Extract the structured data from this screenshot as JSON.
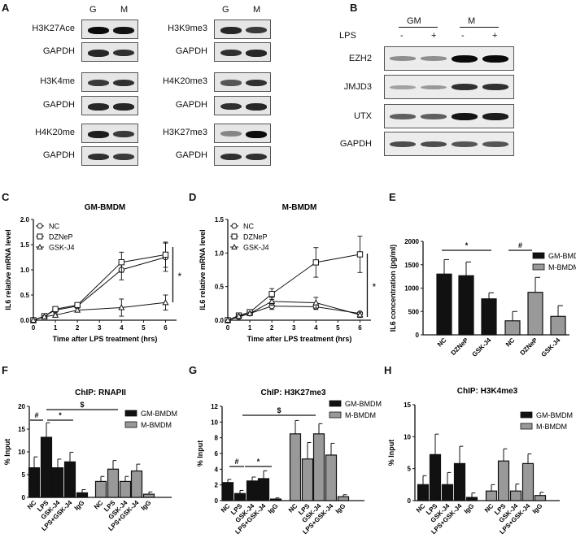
{
  "panel_labels": [
    "A",
    "B",
    "C",
    "D",
    "E",
    "F",
    "G",
    "H"
  ],
  "panelA": {
    "columns": [
      "G",
      "M"
    ],
    "blots": [
      {
        "label": "H3K27Ace",
        "g": 1.0,
        "m": 0.95
      },
      {
        "label": "GAPDH",
        "g": 0.85,
        "m": 0.8
      },
      {
        "label": "H3K4me",
        "g": 0.75,
        "m": 0.8
      },
      {
        "label": "GAPDH",
        "g": 0.85,
        "m": 0.85
      },
      {
        "label": "H4K20me",
        "g": 0.9,
        "m": 0.75
      },
      {
        "label": "GAPDH",
        "g": 0.8,
        "m": 0.75
      },
      {
        "label": "H3K9me3",
        "g": 0.85,
        "m": 0.75
      },
      {
        "label": "GAPDH",
        "g": 0.8,
        "m": 0.85
      },
      {
        "label": "H4K20me3",
        "g": 0.6,
        "m": 0.8
      },
      {
        "label": "GAPDH",
        "g": 0.8,
        "m": 0.85
      },
      {
        "label": "H3K27me3",
        "g": 0.35,
        "m": 1.0
      },
      {
        "label": "GAPDH",
        "g": 0.8,
        "m": 0.8
      }
    ]
  },
  "panelB": {
    "groups": [
      "GM",
      "M"
    ],
    "lps_label": "LPS",
    "lps_signs": [
      "-",
      "+",
      "-",
      "+"
    ],
    "blots": [
      {
        "label": "EZH2",
        "intensities": [
          0.3,
          0.3,
          1.0,
          1.0
        ]
      },
      {
        "label": "JMJD3",
        "intensities": [
          0.2,
          0.25,
          0.8,
          0.8
        ]
      },
      {
        "label": "UTX",
        "intensities": [
          0.55,
          0.55,
          0.95,
          0.9
        ]
      },
      {
        "label": "GAPDH",
        "intensities": [
          0.65,
          0.65,
          0.6,
          0.6
        ]
      }
    ]
  },
  "chart_data": [
    {
      "panel": "C",
      "type": "line",
      "title": "GM-BMDM",
      "xlabel": "Time after LPS treatment (hrs)",
      "ylabel": "IL6 relative mRNA level",
      "xlim": [
        0,
        6.5
      ],
      "ylim": [
        0,
        2.0
      ],
      "xticks": [
        0,
        1,
        2,
        3,
        4,
        5,
        6
      ],
      "yticks": [
        "0.0",
        "0.5",
        "1.0",
        "1.5",
        "2.0"
      ],
      "x": [
        0,
        0.5,
        1,
        2,
        4,
        6
      ],
      "series": [
        {
          "name": "NC",
          "marker": "circle",
          "values": [
            0,
            0.08,
            0.2,
            0.28,
            1.0,
            1.25
          ],
          "errors": [
            0,
            0.02,
            0.04,
            0.04,
            0.2,
            0.28
          ]
        },
        {
          "name": "DZNeP",
          "marker": "square",
          "values": [
            0,
            0.08,
            0.22,
            0.3,
            1.15,
            1.3
          ],
          "errors": [
            0,
            0.02,
            0.04,
            0.04,
            0.2,
            0.25
          ]
        },
        {
          "name": "GSK-J4",
          "marker": "triangle",
          "values": [
            0,
            0.07,
            0.1,
            0.2,
            0.25,
            0.35
          ],
          "errors": [
            0,
            0.02,
            0.03,
            0.04,
            0.17,
            0.15
          ]
        }
      ],
      "annotation": "*"
    },
    {
      "panel": "D",
      "type": "line",
      "title": "M-BMDM",
      "xlabel": "Time after LPS treatment (hrs)",
      "ylabel": "IL6 relative mRNA level",
      "xlim": [
        0,
        6.5
      ],
      "ylim": [
        0,
        1.5
      ],
      "xticks": [
        0,
        1,
        2,
        3,
        4,
        5,
        6
      ],
      "yticks": [
        "0.0",
        "0.5",
        "1.0",
        "1.5"
      ],
      "x": [
        0,
        0.5,
        1,
        2,
        4,
        6
      ],
      "series": [
        {
          "name": "NC",
          "marker": "circle",
          "values": [
            0,
            0.05,
            0.1,
            0.21,
            0.2,
            0.1
          ],
          "errors": [
            0,
            0.02,
            0.02,
            0.05,
            0.04,
            0.02
          ]
        },
        {
          "name": "DZNeP",
          "marker": "square",
          "values": [
            0,
            0.07,
            0.12,
            0.39,
            0.86,
            0.98
          ],
          "errors": [
            0,
            0.02,
            0.02,
            0.08,
            0.22,
            0.27
          ]
        },
        {
          "name": "GSK-J4",
          "marker": "triangle",
          "values": [
            0,
            0.06,
            0.1,
            0.28,
            0.26,
            0.08
          ],
          "errors": [
            0,
            0.02,
            0.02,
            0.06,
            0.08,
            0.04
          ]
        }
      ],
      "annotation": "*"
    },
    {
      "panel": "E",
      "type": "bar",
      "title": "",
      "ylabel": "IL6 concentration (pg/ml)",
      "ylim": [
        0,
        2000
      ],
      "yticks": [
        "0",
        "500",
        "1000",
        "1500",
        "2000"
      ],
      "categories": [
        "NC",
        "DZNeP",
        "GSK-J4",
        "NC",
        "DZNeP",
        "GSK-J4"
      ],
      "series": [
        {
          "name": "GM-BMDM",
          "color": "#111111",
          "values": [
            1300,
            1265,
            770
          ],
          "errors": [
            310,
            295,
            130
          ]
        },
        {
          "name": "M-BMDM",
          "color": "#999999",
          "values": [
            300,
            910,
            395
          ],
          "errors": [
            200,
            320,
            230
          ]
        }
      ],
      "annotations": [
        "*",
        "#"
      ],
      "legend": [
        "GM-BMDM",
        "M-BMDM"
      ]
    },
    {
      "panel": "F",
      "type": "bar",
      "title": "ChIP: RNAPII",
      "ylabel": "% Input",
      "ylim": [
        0,
        20
      ],
      "yticks": [
        "0",
        "5",
        "10",
        "15",
        "20"
      ],
      "categories": [
        "NC",
        "LPS",
        "GSK-J4",
        "LPS+GSK-J4",
        "IgG"
      ],
      "series": [
        {
          "name": "GM-BMDM",
          "color": "#111111",
          "values": [
            6.5,
            13.2,
            6.5,
            7.8,
            1.0
          ],
          "errors": [
            2.4,
            3.2,
            1.9,
            2.1,
            0.7
          ]
        },
        {
          "name": "M-BMDM",
          "color": "#999999",
          "values": [
            3.5,
            6.2,
            3.5,
            5.8,
            0.7
          ],
          "errors": [
            1.1,
            1.9,
            1.1,
            1.5,
            0.5
          ]
        }
      ],
      "annotations": [
        "#",
        "*",
        "$"
      ],
      "legend": [
        "GM-BMDM",
        "M-BMDM"
      ]
    },
    {
      "panel": "G",
      "type": "bar",
      "title": "ChIP: H3K27me3",
      "ylabel": "% Input",
      "ylim": [
        0,
        12
      ],
      "yticks": [
        "0",
        "2",
        "4",
        "6",
        "8",
        "10",
        "12"
      ],
      "categories": [
        "NC",
        "LPS",
        "GSK-J4",
        "LPS+GSK-J4",
        "IgG"
      ],
      "series": [
        {
          "name": "GM-BMDM",
          "color": "#111111",
          "values": [
            2.3,
            0.9,
            2.5,
            2.8,
            0.2
          ],
          "errors": [
            0.4,
            0.4,
            0.5,
            1.0,
            0.15
          ]
        },
        {
          "name": "M-BMDM",
          "color": "#999999",
          "values": [
            8.5,
            5.3,
            8.5,
            5.8,
            0.5
          ],
          "errors": [
            1.7,
            2.1,
            1.3,
            1.5,
            0.25
          ]
        }
      ],
      "annotations": [
        "#",
        "*",
        "$"
      ],
      "legend": [
        "GM-BMDM",
        "M-BMDM"
      ]
    },
    {
      "panel": "H",
      "type": "bar",
      "title": "ChIP: H3K4me3",
      "ylabel": "% Input",
      "ylim": [
        0,
        15
      ],
      "yticks": [
        "0",
        "5",
        "10",
        "15"
      ],
      "categories": [
        "NC",
        "LPS",
        "GSK-J4",
        "LPS+GSK-J4",
        "IgG"
      ],
      "series": [
        {
          "name": "GM-BMDM",
          "color": "#111111",
          "values": [
            2.5,
            7.2,
            2.5,
            5.8,
            0.5
          ],
          "errors": [
            1.4,
            3.2,
            1.9,
            2.7,
            0.7
          ]
        },
        {
          "name": "M-BMDM",
          "color": "#999999",
          "values": [
            1.5,
            6.2,
            1.5,
            5.8,
            0.8
          ],
          "errors": [
            1.0,
            1.9,
            1.1,
            1.5,
            0.5
          ]
        }
      ],
      "legend": [
        "GM-BMDM",
        "M-BMDM"
      ]
    }
  ]
}
